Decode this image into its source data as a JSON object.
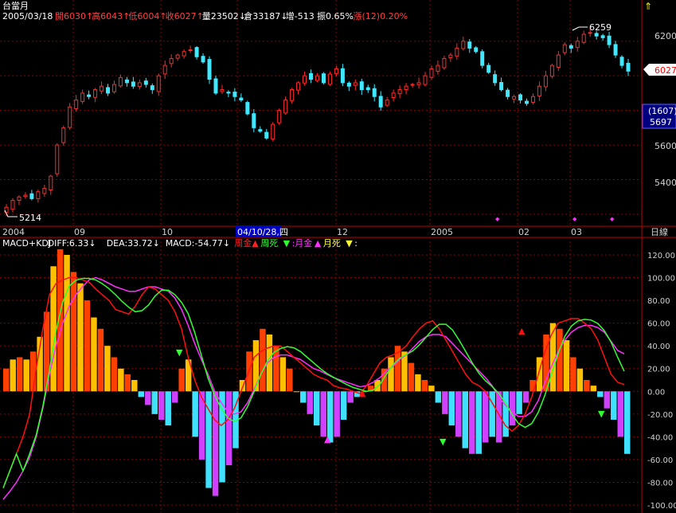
{
  "header": {
    "title": "台當月",
    "date": "2005/03/18",
    "segments": [
      {
        "label": "開",
        "value": "6030",
        "arrow": "↑",
        "color": "#ff4040"
      },
      {
        "label": "高",
        "value": "6043",
        "arrow": "↑",
        "color": "#ff4040"
      },
      {
        "label": "低",
        "value": "6004",
        "arrow": "↑",
        "color": "#ff4040"
      },
      {
        "label": "收",
        "value": "6027",
        "arrow": "↑",
        "color": "#ff4040"
      },
      {
        "label": "量",
        "value": "23502",
        "arrow": "↓",
        "color": "#ffffff"
      },
      {
        "label": "倉",
        "value": "33187",
        "arrow": "↓",
        "color": "#ffffff"
      },
      {
        "label": "增",
        "value": "-513",
        "arrow": "",
        "color": "#ffffff"
      },
      {
        "label": "振",
        "value": "0.65%",
        "arrow": "",
        "color": "#ffffff"
      },
      {
        "label": "漲",
        "value": "(12)0.20%",
        "arrow": "",
        "color": "#ff4040"
      }
    ]
  },
  "price_panel": {
    "y_ticks": [
      "6200",
      "5600",
      "5400"
    ],
    "last_close_label": "6027",
    "cursor_box": {
      "top": "(1607)",
      "bottom": "5697"
    },
    "high_marker": "6259",
    "low_marker": "5214",
    "ylim": [
      5140,
      6300
    ]
  },
  "x_axis": {
    "labels": [
      "2004",
      "09",
      "10",
      "04/10/28,四",
      "12",
      "2005",
      "02",
      "03"
    ],
    "period_label": "日線"
  },
  "indicator_panel": {
    "legend": [
      {
        "text": "MACD+KDJ ",
        "color": "#ffffff"
      },
      {
        "text": "DIFF:6.33↓ ",
        "color": "#ffffff"
      },
      {
        "text": "DEA:33.72↓ ",
        "color": "#ffffff"
      },
      {
        "text": "MACD:-54.77↓ ",
        "color": "#ffffff"
      },
      {
        "text": "周金",
        "color": "#ff2020"
      },
      {
        "text": "▲",
        "color": "#ff2020"
      },
      {
        "text": " 周死",
        "color": "#30ff30"
      },
      {
        "text": "▼",
        "color": "#30ff30"
      },
      {
        "text": ":月金",
        "color": "#ff30ff"
      },
      {
        "text": "▲",
        "color": "#ff30ff"
      },
      {
        "text": " 月死",
        "color": "#ffff30"
      },
      {
        "text": "▼",
        "color": "#ffff30"
      },
      {
        "text": ":",
        "color": "#ffffff"
      }
    ],
    "y_ticks": [
      "120.00",
      "100.00",
      "80.00",
      "60.00",
      "40.00",
      "20.00",
      "0.00",
      "-20.00",
      "-40.00",
      "-60.00",
      "-80.00",
      "-100.00"
    ]
  },
  "colors": {
    "bg": "#000000",
    "grid": "#8b0000",
    "axis": "#c00000",
    "up_candle": "#ff2a2a",
    "down_candle": "#40e8ff",
    "hist_pos_a": "#ff4000",
    "hist_pos_b": "#ffc000",
    "hist_neg_a": "#40e0ff",
    "hist_neg_b": "#d040ff",
    "line_red": "#ff1010",
    "line_magenta": "#ff30ff",
    "line_green": "#30ff30",
    "line_white": "#ffffff",
    "axis_text": "#d0d0d0"
  },
  "chart_data": [
    {
      "type": "candlestick",
      "title": "台當月",
      "ylim": [
        5140,
        6300
      ],
      "y_ticks": [
        5400,
        5600,
        6200
      ],
      "close_approx": [
        5240,
        5280,
        5300,
        5310,
        5290,
        5330,
        5350,
        5420,
        5600,
        5700,
        5820,
        5860,
        5900,
        5880,
        5920,
        5940,
        5900,
        5950,
        5990,
        5960,
        5940,
        5960,
        5950,
        5920,
        6000,
        6060,
        6100,
        6120,
        6140,
        6150,
        6110,
        6080,
        5980,
        5900,
        5920,
        5900,
        5880,
        5860,
        5780,
        5700,
        5680,
        5640,
        5720,
        5800,
        5860,
        5920,
        5960,
        6000,
        5980,
        6000,
        5960,
        6010,
        6040,
        5960,
        5940,
        5960,
        5920,
        5920,
        5880,
        5820,
        5860,
        5900,
        5920,
        5940,
        5950,
        5960,
        6000,
        6040,
        6060,
        6100,
        6120,
        6160,
        6200,
        6160,
        6140,
        6060,
        6020,
        5960,
        5920,
        5880,
        5880,
        5860,
        5840,
        5880,
        5940,
        6000,
        6060,
        6120,
        6180,
        6160,
        6200,
        6240,
        6250,
        6230,
        6220,
        6180,
        6120,
        6060,
        6027
      ],
      "session_high": 6259,
      "session_low": 5214,
      "last": 6027
    },
    {
      "type": "bar+line",
      "title": "MACD+KDJ",
      "ylim": [
        -100,
        125
      ],
      "y_ticks": [
        -100,
        -80,
        -60,
        -40,
        -20,
        0,
        20,
        40,
        60,
        80,
        100,
        120
      ],
      "series": [
        {
          "name": "DIFF",
          "values": [
            -85,
            -70,
            -55,
            -40,
            -20,
            20,
            55,
            85,
            95,
            98,
            100,
            100,
            98,
            96,
            90,
            85,
            80,
            72,
            70,
            68,
            75,
            85,
            92,
            90,
            85,
            80,
            70,
            55,
            30,
            10,
            -5,
            -15,
            -25,
            -30,
            -25,
            -15,
            0,
            15,
            30,
            35,
            38,
            40,
            40,
            35,
            30,
            25,
            20,
            15,
            12,
            10,
            5,
            3,
            2,
            0,
            -2,
            5,
            15,
            25,
            30,
            32,
            35,
            40,
            48,
            55,
            60,
            62,
            55,
            45,
            35,
            25,
            15,
            8,
            5,
            0,
            -10,
            -20,
            -30,
            -35,
            -30,
            -20,
            -5,
            15,
            35,
            50,
            60,
            62,
            64,
            64,
            60,
            55,
            45,
            30,
            15,
            8,
            6
          ]
        },
        {
          "name": "DEA",
          "values": [
            -95,
            -88,
            -80,
            -70,
            -58,
            -40,
            -15,
            15,
            40,
            60,
            75,
            85,
            92,
            98,
            100,
            98,
            95,
            92,
            90,
            88,
            88,
            90,
            92,
            92,
            90,
            88,
            82,
            72,
            58,
            42,
            28,
            15,
            0,
            -10,
            -18,
            -20,
            -18,
            -10,
            2,
            15,
            25,
            30,
            32,
            32,
            30,
            28,
            24,
            20,
            18,
            15,
            12,
            10,
            8,
            6,
            4,
            5,
            8,
            12,
            18,
            22,
            28,
            32,
            38,
            44,
            48,
            50,
            50,
            48,
            42,
            36,
            30,
            24,
            18,
            12,
            5,
            -5,
            -12,
            -18,
            -22,
            -22,
            -18,
            -8,
            8,
            22,
            35,
            45,
            52,
            56,
            58,
            58,
            56,
            52,
            44,
            36,
            33
          ]
        },
        {
          "name": "MACD",
          "values": [
            20,
            28,
            30,
            28,
            35,
            48,
            70,
            110,
            125,
            120,
            105,
            95,
            80,
            65,
            55,
            40,
            30,
            20,
            15,
            10,
            -5,
            -12,
            -20,
            -25,
            -30,
            -10,
            20,
            28,
            -40,
            -60,
            -85,
            -92,
            -80,
            -65,
            -50,
            10,
            35,
            45,
            55,
            50,
            40,
            30,
            20,
            0,
            -10,
            -20,
            -30,
            -40,
            -45,
            -40,
            -25,
            -10,
            -5,
            0,
            5,
            10,
            20,
            30,
            40,
            35,
            25,
            15,
            10,
            5,
            -10,
            -20,
            -30,
            -40,
            -50,
            -55,
            -55,
            -45,
            -40,
            -45,
            -40,
            -30,
            -20,
            -10,
            10,
            30,
            50,
            60,
            55,
            45,
            30,
            20,
            10,
            5,
            -5,
            -15,
            -25,
            -40,
            -55
          ]
        }
      ]
    }
  ]
}
